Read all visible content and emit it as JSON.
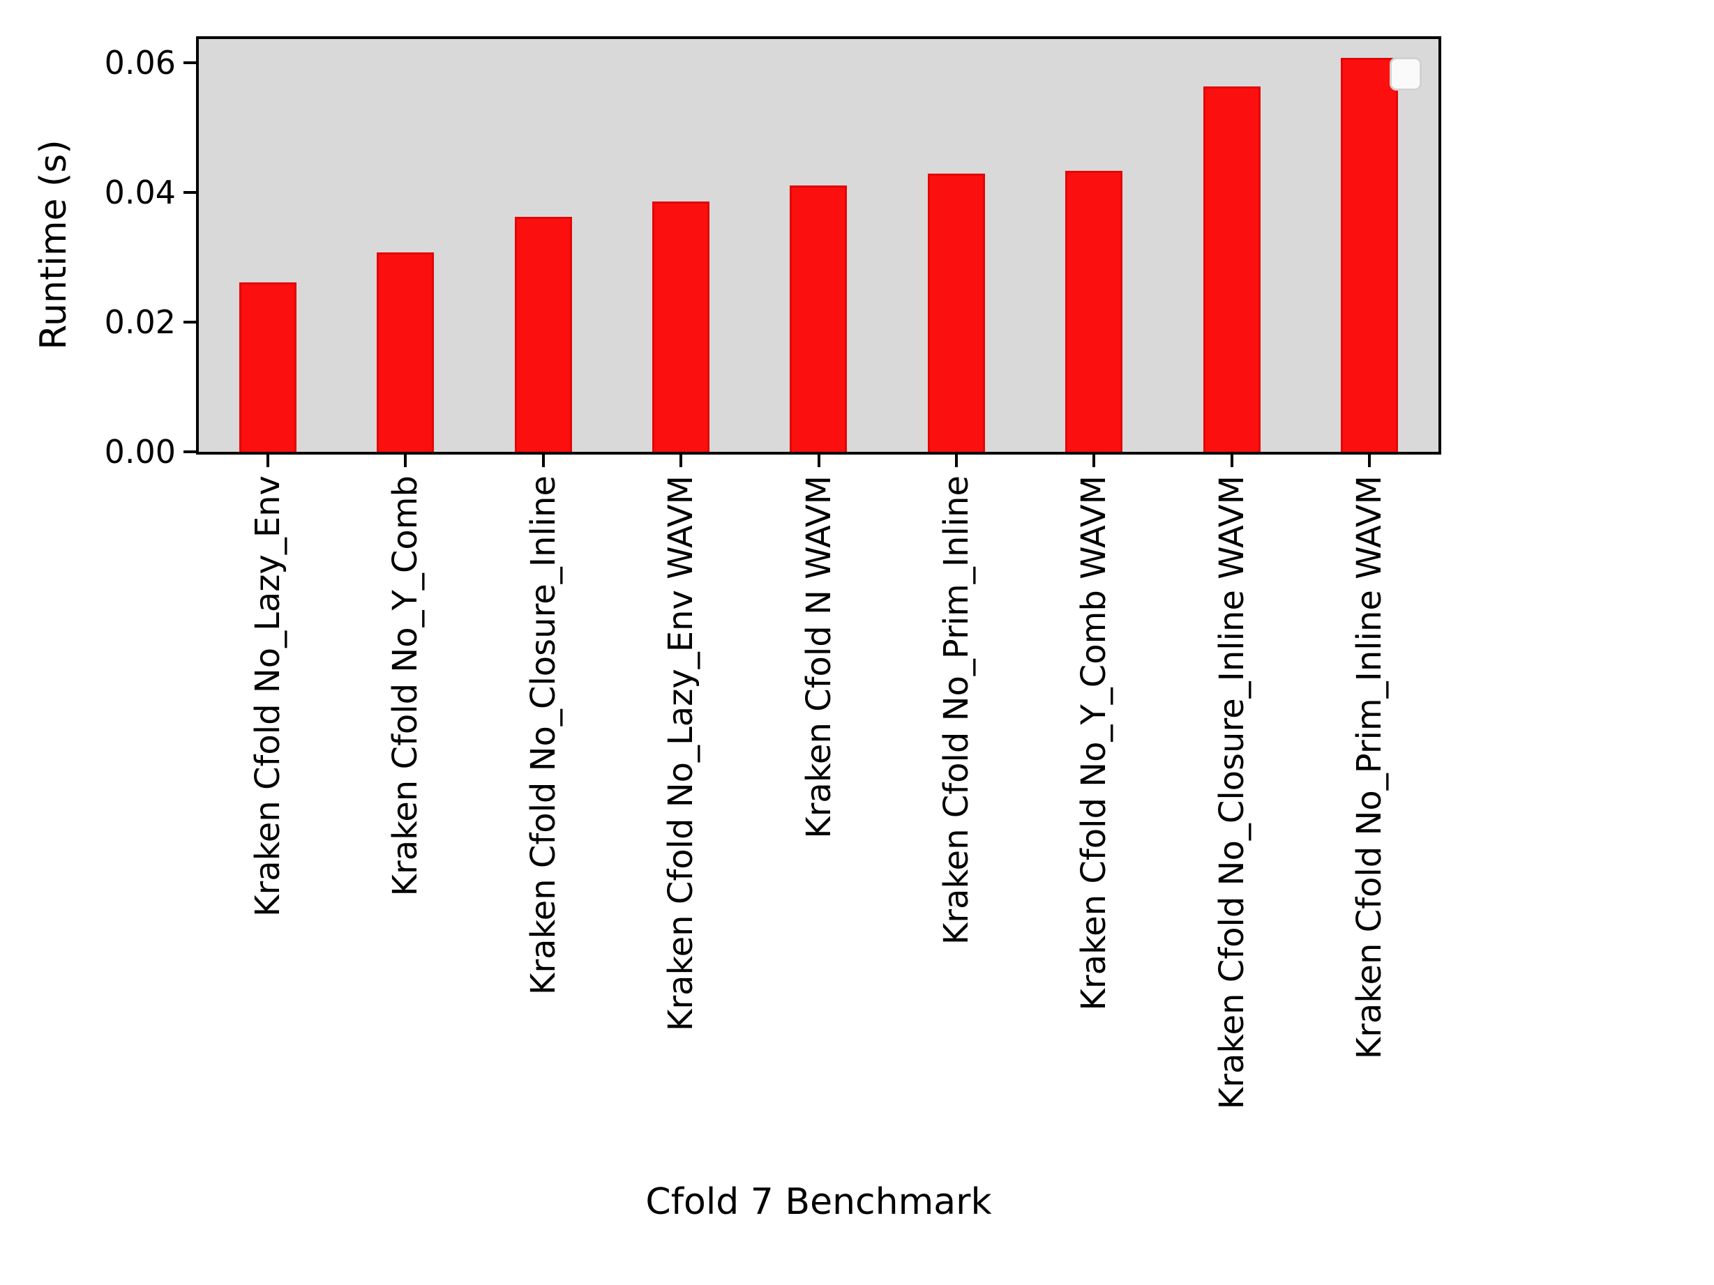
{
  "chart_data": {
    "type": "bar",
    "title": "",
    "xlabel": "Cfold 7 Benchmark",
    "ylabel": "Runtime (s)",
    "categories": [
      "Kraken Cfold No_Lazy_Env",
      "Kraken Cfold No_Y_Comb",
      "Kraken Cfold No_Closure_Inline",
      "Kraken Cfold No_Lazy_Env WAVM",
      "Kraken Cfold N WAVM",
      "Kraken Cfold No_Prim_Inline",
      "Kraken Cfold No_Y_Comb WAVM",
      "Kraken Cfold No_Closure_Inline WAVM",
      "Kraken Cfold No_Prim_Inline WAVM"
    ],
    "values": [
      0.0262,
      0.0308,
      0.0363,
      0.0386,
      0.0411,
      0.0429,
      0.0434,
      0.0564,
      0.0608
    ],
    "ylim": [
      0,
      0.0637
    ],
    "yticks": [
      0.0,
      0.02,
      0.04,
      0.06
    ],
    "ytick_labels": [
      "0.00",
      "0.02",
      "0.04",
      "0.06"
    ],
    "grid": false,
    "legend": {
      "visible": true,
      "entries": [],
      "position": "upper right"
    },
    "colors": {
      "bar_fill": "#fb0f0f",
      "bar_edge": "#e30505",
      "plot_background": "#d9d9d9",
      "figure_background": "#ffffff",
      "axis": "#000000"
    }
  }
}
